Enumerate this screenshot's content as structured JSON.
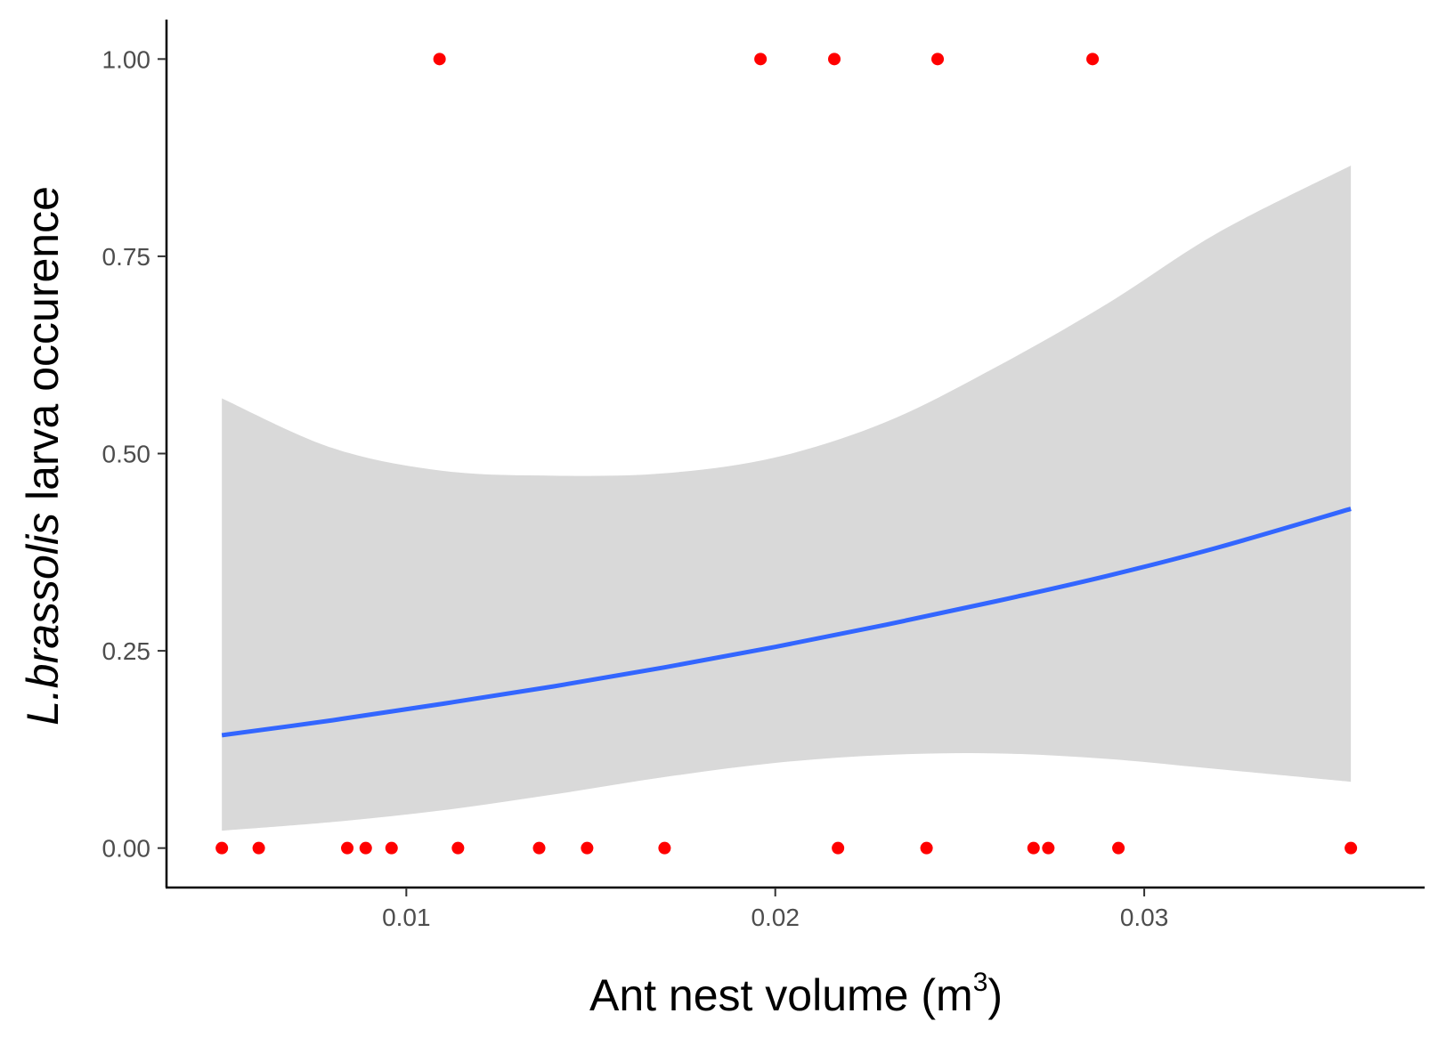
{
  "chart_data": {
    "type": "scatter",
    "title": "",
    "xlabel_main": "Ant nest volume (m",
    "xlabel_sup": "3",
    "xlabel_close": ")",
    "ylabel_italic": "L.brassolis",
    "ylabel_rest": " larva occurence",
    "xlim": [
      0.0035,
      0.0376
    ],
    "ylim": [
      -0.05,
      1.05
    ],
    "xticks": [
      0.01,
      0.02,
      0.03
    ],
    "xtick_labels": [
      "0.01",
      "0.02",
      "0.03"
    ],
    "yticks": [
      0.0,
      0.25,
      0.5,
      0.75,
      1.0
    ],
    "ytick_labels": [
      "0.00",
      "0.25",
      "0.50",
      "0.75",
      "1.00"
    ],
    "grid": false,
    "points_color": "#ff0000",
    "points": [
      {
        "x": 0.005,
        "y": 0
      },
      {
        "x": 0.006,
        "y": 0
      },
      {
        "x": 0.0084,
        "y": 0
      },
      {
        "x": 0.0089,
        "y": 0
      },
      {
        "x": 0.0096,
        "y": 0
      },
      {
        "x": 0.0114,
        "y": 0
      },
      {
        "x": 0.0136,
        "y": 0
      },
      {
        "x": 0.0149,
        "y": 0
      },
      {
        "x": 0.017,
        "y": 0
      },
      {
        "x": 0.0217,
        "y": 0
      },
      {
        "x": 0.0241,
        "y": 0
      },
      {
        "x": 0.027,
        "y": 0
      },
      {
        "x": 0.0274,
        "y": 0
      },
      {
        "x": 0.0293,
        "y": 0
      },
      {
        "x": 0.0356,
        "y": 0
      },
      {
        "x": 0.0109,
        "y": 1
      },
      {
        "x": 0.0196,
        "y": 1
      },
      {
        "x": 0.0216,
        "y": 1
      },
      {
        "x": 0.0244,
        "y": 1
      },
      {
        "x": 0.0286,
        "y": 1
      }
    ],
    "fit": {
      "name": "",
      "color": "#3366ff",
      "x": [
        0.005,
        0.008,
        0.011,
        0.014,
        0.017,
        0.02,
        0.023,
        0.026,
        0.029,
        0.032,
        0.0356
      ],
      "y": [
        0.143,
        0.162,
        0.183,
        0.205,
        0.229,
        0.255,
        0.283,
        0.313,
        0.345,
        0.381,
        0.43
      ],
      "lower": [
        0.022,
        0.033,
        0.048,
        0.068,
        0.09,
        0.108,
        0.118,
        0.12,
        0.113,
        0.1,
        0.084
      ],
      "upper": [
        0.57,
        0.507,
        0.478,
        0.472,
        0.475,
        0.495,
        0.54,
        0.61,
        0.69,
        0.78,
        0.865
      ]
    },
    "band_color": "#d9d9d9"
  }
}
